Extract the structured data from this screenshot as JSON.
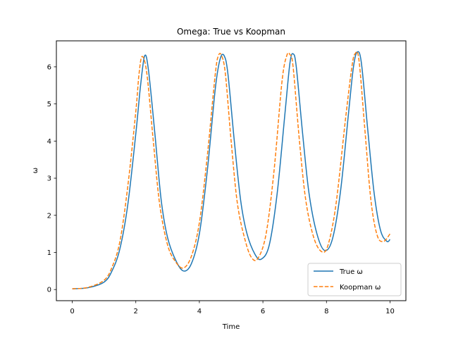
{
  "chart_data": {
    "type": "line",
    "title": "Omega: True vs Koopman",
    "xlabel": "Time",
    "ylabel": "ω",
    "xlim": [
      -0.5,
      10.5
    ],
    "ylim": [
      -0.3,
      6.7
    ],
    "xticks": [
      0,
      2,
      4,
      6,
      8,
      10
    ],
    "yticks": [
      0,
      1,
      2,
      3,
      4,
      5,
      6
    ],
    "grid": false,
    "legend_position": "lower-right",
    "series": [
      {
        "name": "True ω",
        "color": "#1f77b4",
        "style": "solid",
        "x": [
          0,
          0.5,
          1.0,
          1.25,
          1.5,
          1.75,
          2.0,
          2.15,
          2.28,
          2.4,
          2.6,
          2.8,
          3.0,
          3.25,
          3.5,
          3.75,
          4.0,
          4.25,
          4.5,
          4.65,
          4.78,
          4.9,
          5.1,
          5.3,
          5.5,
          5.75,
          5.95,
          6.2,
          6.45,
          6.7,
          6.85,
          6.95,
          7.05,
          7.25,
          7.45,
          7.7,
          7.95,
          8.2,
          8.45,
          8.7,
          8.85,
          8.97,
          9.1,
          9.3,
          9.5,
          9.7,
          9.9,
          10.0
        ],
        "y": [
          0.02,
          0.05,
          0.2,
          0.5,
          1.1,
          2.3,
          4.2,
          5.5,
          6.3,
          5.9,
          4.2,
          2.4,
          1.4,
          0.8,
          0.5,
          0.7,
          1.5,
          3.2,
          5.4,
          6.2,
          6.3,
          5.8,
          4.0,
          2.4,
          1.5,
          0.95,
          0.82,
          1.2,
          2.6,
          4.8,
          6.1,
          6.35,
          6.0,
          4.2,
          2.6,
          1.5,
          1.05,
          1.4,
          2.7,
          4.8,
          6.0,
          6.4,
          6.1,
          4.3,
          2.6,
          1.6,
          1.3,
          1.35
        ]
      },
      {
        "name": "Koopman ω",
        "color": "#ff7f0e",
        "style": "dashed",
        "x": [
          0,
          0.5,
          1.0,
          1.25,
          1.5,
          1.75,
          2.0,
          2.1,
          2.2,
          2.35,
          2.55,
          2.75,
          3.0,
          3.25,
          3.5,
          3.75,
          4.0,
          4.25,
          4.5,
          4.6,
          4.7,
          4.82,
          5.0,
          5.2,
          5.45,
          5.65,
          5.85,
          6.1,
          6.35,
          6.6,
          6.75,
          6.85,
          6.95,
          7.15,
          7.35,
          7.6,
          7.85,
          8.05,
          8.3,
          8.6,
          8.8,
          8.9,
          9.02,
          9.2,
          9.4,
          9.6,
          9.8,
          10.0
        ],
        "y": [
          0.02,
          0.06,
          0.25,
          0.6,
          1.3,
          2.8,
          4.8,
          5.8,
          6.28,
          5.8,
          4.0,
          2.3,
          1.2,
          0.75,
          0.58,
          0.9,
          1.8,
          3.6,
          5.8,
          6.3,
          6.3,
          5.8,
          4.0,
          2.3,
          1.3,
          0.85,
          0.85,
          1.5,
          3.2,
          5.6,
          6.3,
          6.33,
          6.0,
          4.0,
          2.4,
          1.4,
          1.02,
          1.2,
          2.3,
          4.6,
          6.0,
          6.35,
          6.2,
          4.4,
          2.4,
          1.45,
          1.3,
          1.5
        ]
      }
    ]
  }
}
